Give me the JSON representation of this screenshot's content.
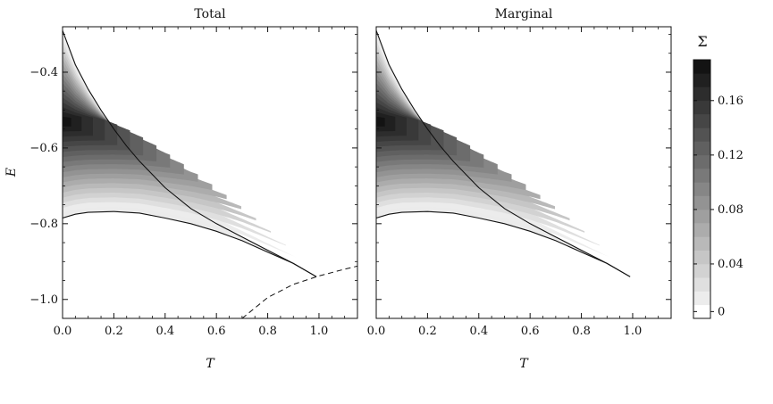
{
  "chart_data": [
    {
      "type": "contour",
      "title": "Total",
      "xlabel": "T",
      "ylabel": "E",
      "xlim": [
        0,
        1.15
      ],
      "ylim": [
        -1.05,
        -0.28
      ],
      "xticks": [
        "0.0",
        "0.2",
        "0.4",
        "0.6",
        "0.8",
        "1.0"
      ],
      "yticks": [
        "−0.4",
        "−0.6",
        "−0.8",
        "−1.0"
      ],
      "curves": {
        "upper_boundary": [
          [
            0.0,
            -0.29
          ],
          [
            0.05,
            -0.38
          ],
          [
            0.1,
            -0.445
          ],
          [
            0.15,
            -0.5
          ],
          [
            0.2,
            -0.55
          ],
          [
            0.25,
            -0.595
          ],
          [
            0.3,
            -0.635
          ],
          [
            0.4,
            -0.705
          ],
          [
            0.5,
            -0.76
          ],
          [
            0.6,
            -0.8
          ],
          [
            0.7,
            -0.835
          ],
          [
            0.8,
            -0.87
          ],
          [
            0.9,
            -0.905
          ],
          [
            0.99,
            -0.94
          ]
        ],
        "lower_boundary": [
          [
            0.0,
            -0.785
          ],
          [
            0.05,
            -0.775
          ],
          [
            0.1,
            -0.77
          ],
          [
            0.2,
            -0.768
          ],
          [
            0.3,
            -0.772
          ],
          [
            0.4,
            -0.785
          ],
          [
            0.5,
            -0.8
          ],
          [
            0.6,
            -0.82
          ],
          [
            0.7,
            -0.845
          ],
          [
            0.8,
            -0.875
          ],
          [
            0.9,
            -0.905
          ],
          [
            0.99,
            -0.94
          ]
        ],
        "dashed_line": [
          [
            0.7,
            -1.05
          ],
          [
            0.8,
            -0.995
          ],
          [
            0.9,
            -0.96
          ],
          [
            1.0,
            -0.938
          ],
          [
            1.1,
            -0.92
          ],
          [
            1.15,
            -0.912
          ]
        ]
      },
      "contour_peak": {
        "T": 0.0,
        "E": -0.53,
        "value": 0.185
      }
    },
    {
      "type": "contour",
      "title": "Marginal",
      "xlabel": "T",
      "ylabel": "",
      "xlim": [
        0,
        1.15
      ],
      "ylim": [
        -1.05,
        -0.28
      ],
      "xticks": [
        "0.0",
        "0.2",
        "0.4",
        "0.6",
        "0.8",
        "1.0"
      ],
      "curves": {
        "upper_boundary": [
          [
            0.0,
            -0.29
          ],
          [
            0.05,
            -0.38
          ],
          [
            0.1,
            -0.445
          ],
          [
            0.15,
            -0.5
          ],
          [
            0.2,
            -0.55
          ],
          [
            0.25,
            -0.595
          ],
          [
            0.3,
            -0.635
          ],
          [
            0.4,
            -0.705
          ],
          [
            0.5,
            -0.76
          ],
          [
            0.6,
            -0.8
          ],
          [
            0.7,
            -0.835
          ],
          [
            0.8,
            -0.87
          ],
          [
            0.9,
            -0.905
          ],
          [
            0.99,
            -0.94
          ]
        ],
        "lower_boundary": [
          [
            0.0,
            -0.785
          ],
          [
            0.05,
            -0.775
          ],
          [
            0.1,
            -0.77
          ],
          [
            0.2,
            -0.768
          ],
          [
            0.3,
            -0.772
          ],
          [
            0.4,
            -0.785
          ],
          [
            0.5,
            -0.8
          ],
          [
            0.6,
            -0.82
          ],
          [
            0.7,
            -0.845
          ],
          [
            0.8,
            -0.875
          ],
          [
            0.9,
            -0.905
          ],
          [
            0.99,
            -0.94
          ]
        ]
      },
      "contour_peak": {
        "T": 0.0,
        "E": -0.53,
        "value": 0.185
      }
    }
  ],
  "colorbar": {
    "label": "Σ",
    "range": [
      0,
      0.19
    ],
    "levels": 19,
    "ticks": [
      {
        "value": 0,
        "label": "0"
      },
      {
        "value": 0.04,
        "label": "0.04"
      },
      {
        "value": 0.08,
        "label": "0.08"
      },
      {
        "value": 0.12,
        "label": "0.12"
      },
      {
        "value": 0.16,
        "label": "0.16"
      }
    ]
  }
}
